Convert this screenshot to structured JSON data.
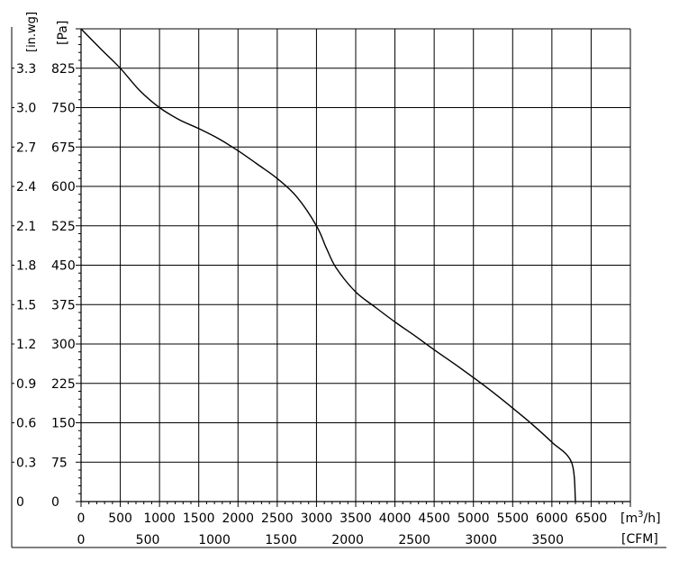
{
  "chart_data": {
    "type": "line",
    "title": "",
    "grid": true,
    "x_axis": {
      "unit": "[m3/h]",
      "unit_base": "[m",
      "unit_sup": "3",
      "unit_tail": "/h]",
      "range": [
        0,
        7000
      ],
      "ticks": [
        0,
        500,
        1000,
        1500,
        2000,
        2500,
        3000,
        3500,
        4000,
        4500,
        5000,
        5500,
        6000,
        6500
      ]
    },
    "x2_axis": {
      "unit": "[CFM]",
      "ticks": [
        0,
        500,
        1000,
        1500,
        2000,
        2500,
        3000,
        3500
      ]
    },
    "y_axis": {
      "unit": "[Pa]",
      "range": [
        0,
        900
      ],
      "ticks": [
        0,
        75,
        150,
        225,
        300,
        375,
        450,
        525,
        600,
        675,
        750,
        825
      ]
    },
    "y2_axis": {
      "unit": "[in.wg]",
      "ticks": [
        0,
        0.3,
        0.6,
        0.9,
        1.2,
        1.5,
        1.8,
        2.1,
        2.4,
        2.7,
        3.0,
        3.3
      ]
    },
    "series": [
      {
        "x": [
          0,
          250,
          500,
          750,
          1000,
          1250,
          1500,
          1750,
          2000,
          2250,
          2500,
          2750,
          3000,
          3125,
          3250,
          3500,
          3750,
          4000,
          4250,
          4500,
          4750,
          5000,
          5250,
          5500,
          5750,
          6000,
          6250,
          6300
        ],
        "y": [
          900,
          862,
          825,
          782,
          750,
          727,
          710,
          691,
          668,
          642,
          615,
          580,
          525,
          483,
          445,
          399,
          370,
          342,
          316,
          289,
          263,
          236,
          208,
          178,
          147,
          113,
          75,
          0
        ],
        "color": "#000000"
      }
    ]
  }
}
